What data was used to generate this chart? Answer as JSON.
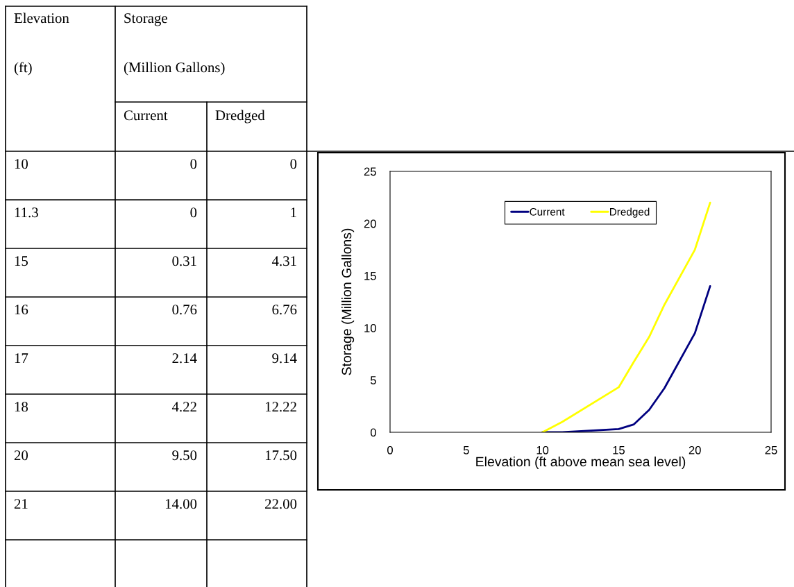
{
  "chart_data": {
    "type": "line",
    "xlabel": "Elevation (ft above mean sea level)",
    "ylabel": "Storage (Million Gallons)",
    "annotations": [
      "Elevation (ft)",
      "Storage (Million Gallons)",
      "10",
      "0",
      "0",
      "11.3",
      "0",
      "1",
      "15",
      "0.31",
      "4.31",
      "16",
      "0.76",
      "6.76",
      "17",
      "2.14",
      "9.14",
      "18",
      "4.22",
      "12.22",
      "20",
      "9.50",
      "17.50",
      "21",
      "14.00",
      "22.00"
    ],
    "x": [
      10,
      11.3,
      15,
      16,
      17,
      18,
      20,
      21
    ],
    "series": [
      {
        "name": "Current",
        "color": "#000080",
        "values": [
          0,
          0,
          0.31,
          0.76,
          2.14,
          4.22,
          9.5,
          14.0
        ]
      },
      {
        "name": "Dredged",
        "color": "#ffff00",
        "values": [
          0,
          1,
          4.31,
          6.76,
          9.14,
          12.22,
          17.5,
          22.0
        ]
      }
    ],
    "xlim": [
      0,
      25
    ],
    "xticks": [
      0,
      5,
      10,
      15,
      20,
      25
    ],
    "ylim": [
      0,
      25
    ],
    "yticks": [
      0,
      5,
      10,
      15,
      20,
      25
    ],
    "grid": false,
    "legend": "top",
    "marker": "none",
    "line_style": "solid"
  }
}
